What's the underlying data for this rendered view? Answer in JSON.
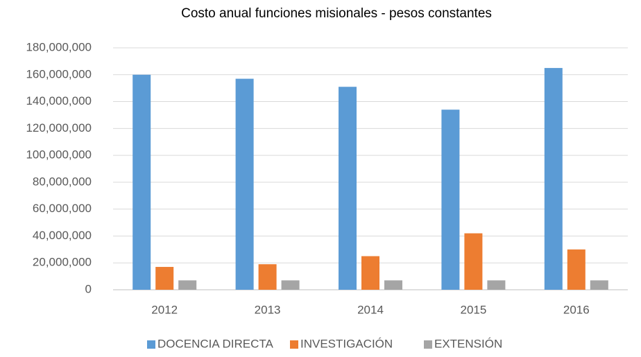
{
  "chart_data": {
    "type": "bar",
    "title": "Costo anual funciones misionales - pesos constantes",
    "categories": [
      "2012",
      "2013",
      "2014",
      "2015",
      "2016"
    ],
    "series": [
      {
        "name": "DOCENCIA DIRECTA",
        "color": "#5b9bd5",
        "values": [
          160000000,
          157000000,
          151000000,
          134000000,
          165000000
        ]
      },
      {
        "name": "INVESTIGACIÓN",
        "color": "#ed7d31",
        "values": [
          17000000,
          19000000,
          25000000,
          42000000,
          30000000
        ]
      },
      {
        "name": "EXTENSIÓN",
        "color": "#a5a5a5",
        "values": [
          7000000,
          7000000,
          7000000,
          7000000,
          7000000
        ]
      }
    ],
    "ylim": [
      0,
      180000000
    ],
    "yticks": [
      0,
      {
        "value": 20000000,
        "label": "20,000,000"
      },
      {
        "value": 40000000,
        "label": "40,000,000"
      },
      {
        "value": 60000000,
        "label": "60,000,000"
      },
      {
        "value": 80000000,
        "label": "80,000,000"
      },
      {
        "value": 100000000,
        "label": "100,000,000"
      },
      {
        "value": 120000000,
        "label": "120,000,000"
      },
      {
        "value": 140000000,
        "label": "140,000,000"
      },
      {
        "value": 160000000,
        "label": "160,000,000"
      },
      {
        "value": 180000000,
        "label": "180,000,000"
      }
    ],
    "grid": true,
    "legend": "bottom"
  }
}
